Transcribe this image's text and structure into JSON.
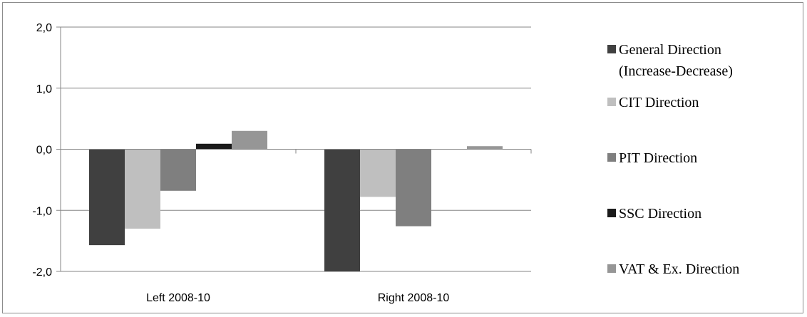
{
  "chart_data": {
    "type": "bar",
    "categories": [
      "Left 2008-10",
      "Right 2008-10"
    ],
    "series": [
      {
        "name": "General Direction (Increase-Decrease)",
        "legend_lines": [
          "General Direction",
          "(Increase-Decrease)"
        ],
        "color": "#404040",
        "values": [
          -1.57,
          -2.0
        ]
      },
      {
        "name": "CIT Direction",
        "legend_lines": [
          "CIT Direction"
        ],
        "color": "#bfbfbf",
        "values": [
          -1.3,
          -0.78
        ]
      },
      {
        "name": "PIT Direction",
        "legend_lines": [
          "PIT Direction"
        ],
        "color": "#7f7f7f",
        "values": [
          -0.68,
          -1.26
        ]
      },
      {
        "name": "SSC Direction",
        "legend_lines": [
          "SSC Direction"
        ],
        "color": "#1a1a1a",
        "values": [
          0.09,
          0.0
        ]
      },
      {
        "name": "VAT & Ex. Direction",
        "legend_lines": [
          "VAT & Ex. Direction"
        ],
        "color": "#969696",
        "values": [
          0.3,
          0.05
        ]
      }
    ],
    "yticks": [
      "2,0",
      "1,0",
      "0,0",
      "-1,0",
      "-2,0"
    ],
    "ytick_values": [
      2,
      1,
      0,
      -1,
      -2
    ],
    "ylim": [
      -2,
      2
    ],
    "grid": true,
    "legend_position": "right"
  }
}
